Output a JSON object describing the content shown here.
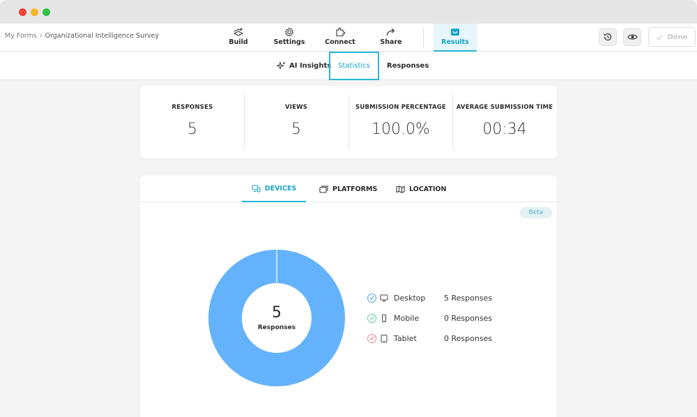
{
  "breadcrumb": {
    "root": "My Forms",
    "separator": "›",
    "current": "Organizational Intelligence Survey"
  },
  "nav": {
    "tabs": [
      {
        "label": "Build",
        "icon": "build-icon"
      },
      {
        "label": "Settings",
        "icon": "gear-icon"
      },
      {
        "label": "Connect",
        "icon": "puzzle-icon"
      },
      {
        "label": "Share",
        "icon": "share-arrow-icon"
      },
      {
        "label": "Results",
        "icon": "inbox-icon",
        "active": true
      }
    ],
    "done_label": "Done"
  },
  "subnav": {
    "tabs": [
      {
        "label": "AI Insights",
        "icon": "sparkle-icon"
      },
      {
        "label": "Statistics",
        "highlighted": true
      },
      {
        "label": "Responses"
      }
    ]
  },
  "stats": [
    {
      "label": "RESPONSES",
      "value": "5"
    },
    {
      "label": "VIEWS",
      "value": "5"
    },
    {
      "label": "SUBMISSION PERCENTAGE",
      "value": "100.0%"
    },
    {
      "label": "AVERAGE SUBMISSION TIME",
      "value": "00:34"
    }
  ],
  "chart_tabs": [
    {
      "label": "DEVICES",
      "icon": "devices-icon",
      "active": true
    },
    {
      "label": "PLATFORMS",
      "icon": "platforms-icon"
    },
    {
      "label": "LOCATION",
      "icon": "map-icon"
    }
  ],
  "beta_label": "Beta",
  "chart_data": {
    "type": "pie",
    "categories": [
      "Desktop",
      "Mobile",
      "Tablet"
    ],
    "values": [
      5,
      0,
      0
    ],
    "center_value": "5",
    "center_label": "Responses",
    "colors": [
      "#64b2fb",
      "#5fd0a8",
      "#f07f8e"
    ],
    "legend": [
      {
        "name": "Desktop",
        "count": "5 Responses",
        "icon": "monitor-icon",
        "color": "#4aa3e0"
      },
      {
        "name": "Mobile",
        "count": "0 Responses",
        "icon": "phone-icon",
        "color": "#5fd0a8"
      },
      {
        "name": "Tablet",
        "count": "0 Responses",
        "icon": "tablet-icon",
        "color": "#f07f8e"
      }
    ]
  }
}
